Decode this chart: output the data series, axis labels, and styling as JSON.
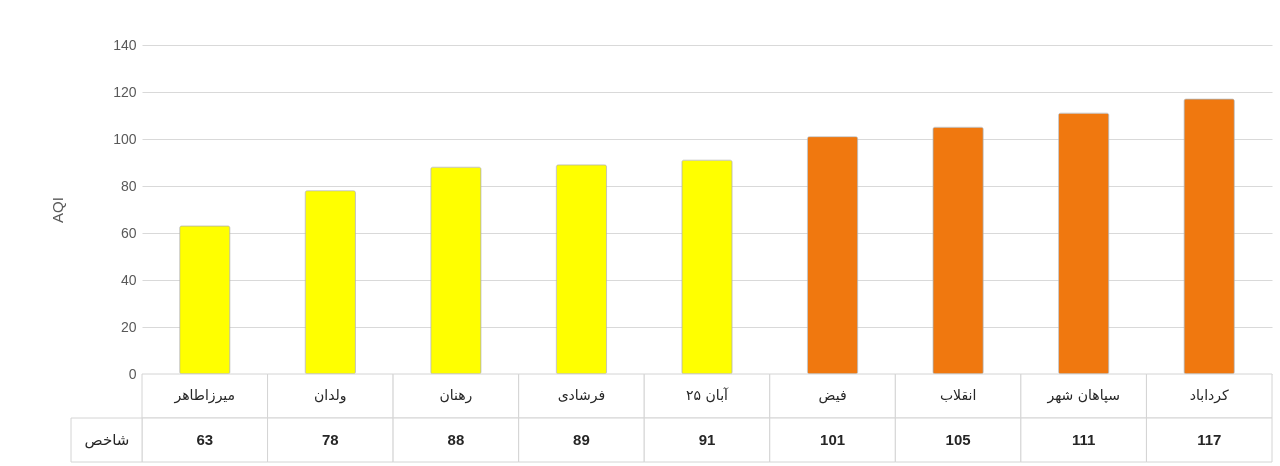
{
  "chart_data": {
    "type": "bar",
    "ylabel": "AQI",
    "categories": [
      "میرزاطاهر",
      "ولدان",
      "رهنان",
      "فرشادی",
      "۲۵ آبان",
      "فیض",
      "انقلاب",
      "سپاهان شهر",
      "کرداباد"
    ],
    "series": [
      {
        "name": "شاخص",
        "colors": [
          "#ffff00",
          "#ffff00",
          "#ffff00",
          "#ffff00",
          "#ffff00",
          "#f0780f",
          "#f0780f",
          "#f0780f",
          "#f0780f"
        ],
        "values": [
          63,
          78,
          88,
          89,
          91,
          101,
          105,
          111,
          117
        ]
      }
    ],
    "ylim": [
      0,
      140
    ],
    "yticks": [
      0,
      20,
      40,
      60,
      80,
      100,
      120,
      140
    ],
    "grid": "y",
    "data_labels": true
  }
}
